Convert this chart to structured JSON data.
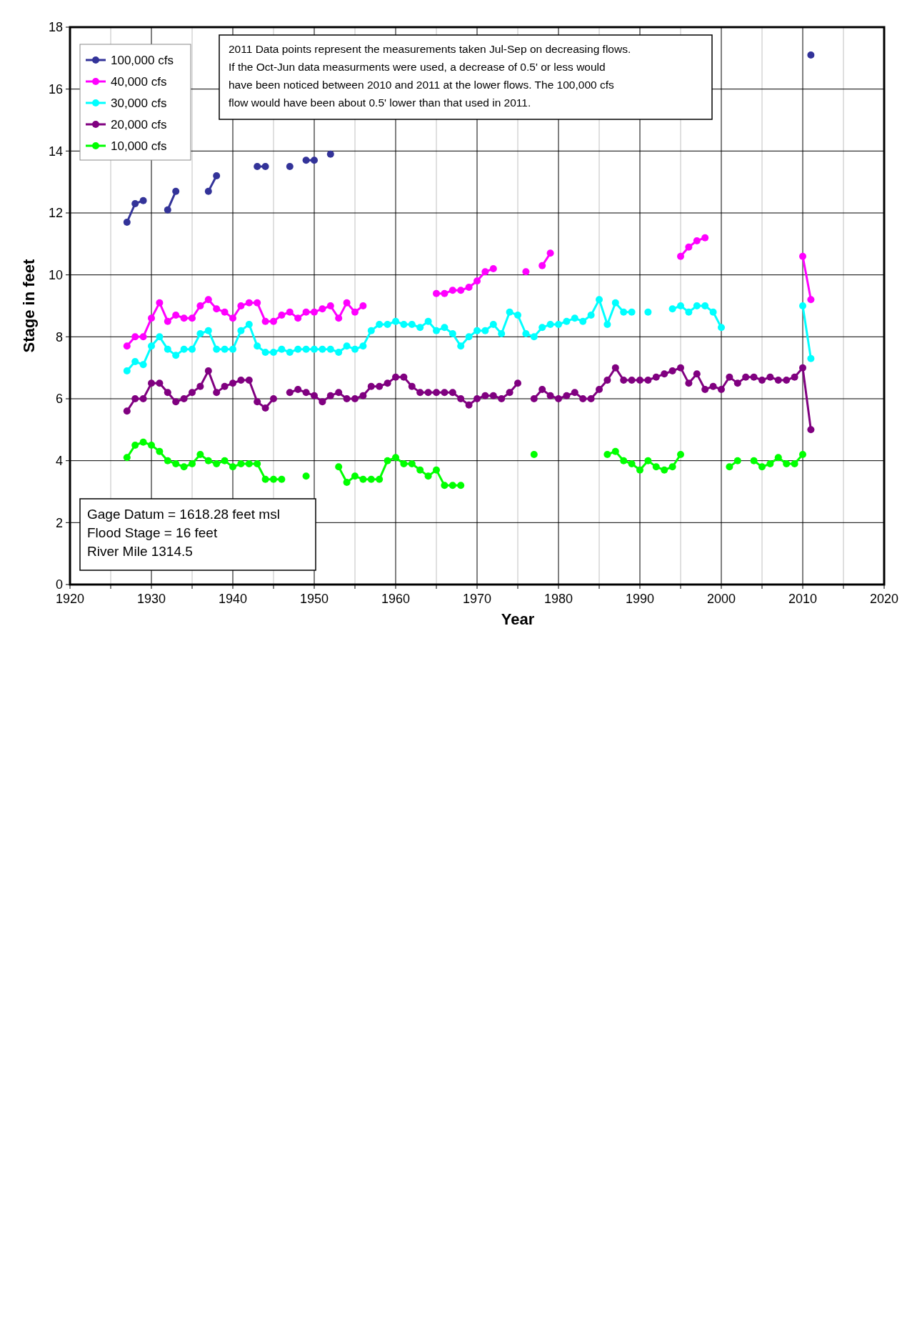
{
  "chart_data": {
    "type": "line",
    "xlabel": "Year",
    "ylabel": "Stage in feet",
    "x": [
      1927,
      1928,
      1929,
      1930,
      1931,
      1932,
      1933,
      1934,
      1935,
      1936,
      1937,
      1938,
      1939,
      1940,
      1941,
      1942,
      1943,
      1944,
      1945,
      1946,
      1947,
      1948,
      1949,
      1950,
      1951,
      1952,
      1953,
      1954,
      1955,
      1956,
      1957,
      1958,
      1959,
      1960,
      1961,
      1962,
      1963,
      1964,
      1965,
      1966,
      1967,
      1968,
      1969,
      1970,
      1971,
      1972,
      1973,
      1974,
      1975,
      1976,
      1977,
      1978,
      1979,
      1980,
      1981,
      1982,
      1983,
      1984,
      1985,
      1986,
      1987,
      1988,
      1989,
      1990,
      1991,
      1992,
      1993,
      1994,
      1995,
      1996,
      1997,
      1998,
      1999,
      2000,
      2001,
      2002,
      2003,
      2004,
      2005,
      2006,
      2007,
      2008,
      2009,
      2010,
      2011
    ],
    "series": [
      {
        "name": "100,000 cfs",
        "color": "#333399",
        "values": [
          11.7,
          12.3,
          12.4,
          null,
          null,
          12.1,
          12.7,
          null,
          null,
          null,
          12.7,
          13.2,
          null,
          null,
          null,
          null,
          13.5,
          13.5,
          null,
          null,
          13.5,
          null,
          13.7,
          13.7,
          null,
          13.9,
          null,
          null,
          null,
          null,
          null,
          null,
          null,
          null,
          null,
          null,
          null,
          null,
          null,
          null,
          null,
          null,
          null,
          null,
          null,
          null,
          null,
          null,
          null,
          null,
          null,
          null,
          null,
          null,
          null,
          null,
          null,
          null,
          null,
          null,
          null,
          null,
          null,
          null,
          null,
          null,
          null,
          null,
          null,
          null,
          null,
          null,
          null,
          null,
          null,
          null,
          null,
          null,
          null,
          null,
          null,
          null,
          null,
          null,
          17.1
        ]
      },
      {
        "name": "40,000 cfs",
        "color": "#ff00ff",
        "values": [
          7.7,
          8.0,
          8.0,
          8.6,
          9.1,
          8.5,
          8.7,
          8.6,
          8.6,
          9.0,
          9.2,
          8.9,
          8.8,
          8.6,
          9.0,
          9.1,
          9.1,
          8.5,
          8.5,
          8.7,
          8.8,
          8.6,
          8.8,
          8.8,
          8.9,
          9.0,
          8.6,
          9.1,
          8.8,
          9.0,
          null,
          null,
          null,
          null,
          null,
          null,
          null,
          null,
          9.4,
          9.4,
          9.5,
          9.5,
          9.6,
          9.8,
          10.1,
          10.2,
          null,
          null,
          null,
          10.1,
          null,
          10.3,
          10.7,
          null,
          null,
          null,
          null,
          null,
          null,
          null,
          null,
          null,
          null,
          null,
          null,
          null,
          null,
          null,
          10.6,
          10.9,
          11.1,
          11.2,
          null,
          null,
          null,
          null,
          null,
          null,
          null,
          null,
          null,
          null,
          null,
          10.6,
          9.2
        ]
      },
      {
        "name": "30,000 cfs",
        "color": "#00ffff",
        "values": [
          6.9,
          7.2,
          7.1,
          7.7,
          8.0,
          7.6,
          7.4,
          7.6,
          7.6,
          8.1,
          8.2,
          7.6,
          7.6,
          7.6,
          8.2,
          8.4,
          7.7,
          7.5,
          7.5,
          7.6,
          7.5,
          7.6,
          7.6,
          7.6,
          7.6,
          7.6,
          7.5,
          7.7,
          7.6,
          7.7,
          8.2,
          8.4,
          8.4,
          8.5,
          8.4,
          8.4,
          8.3,
          8.5,
          8.2,
          8.3,
          8.1,
          7.7,
          8.0,
          8.2,
          8.2,
          8.4,
          8.1,
          8.8,
          8.7,
          8.1,
          8.0,
          8.3,
          8.4,
          8.4,
          8.5,
          8.6,
          8.5,
          8.7,
          9.2,
          8.4,
          9.1,
          8.8,
          8.8,
          null,
          8.8,
          null,
          null,
          8.9,
          9.0,
          8.8,
          9.0,
          9.0,
          8.8,
          8.3,
          null,
          null,
          null,
          null,
          null,
          null,
          null,
          null,
          null,
          9.0,
          7.3
        ]
      },
      {
        "name": "20,000 cfs",
        "color": "#800080",
        "values": [
          5.6,
          6.0,
          6.0,
          6.5,
          6.5,
          6.2,
          5.9,
          6.0,
          6.2,
          6.4,
          6.9,
          6.2,
          6.4,
          6.5,
          6.6,
          6.6,
          5.9,
          5.7,
          6.0,
          null,
          6.2,
          6.3,
          6.2,
          6.1,
          5.9,
          6.1,
          6.2,
          6.0,
          6.0,
          6.1,
          6.4,
          6.4,
          6.5,
          6.7,
          6.7,
          6.4,
          6.2,
          6.2,
          6.2,
          6.2,
          6.2,
          6.0,
          5.8,
          6.0,
          6.1,
          6.1,
          6.0,
          6.2,
          6.5,
          null,
          6.0,
          6.3,
          6.1,
          6.0,
          6.1,
          6.2,
          6.0,
          6.0,
          6.3,
          6.6,
          7.0,
          6.6,
          6.6,
          6.6,
          6.6,
          6.7,
          6.8,
          6.9,
          7.0,
          6.5,
          6.8,
          6.3,
          6.4,
          6.3,
          6.7,
          6.5,
          6.7,
          6.7,
          6.6,
          6.7,
          6.6,
          6.6,
          6.7,
          7.0,
          5.0
        ]
      },
      {
        "name": "10,000 cfs",
        "color": "#00ff00",
        "values": [
          4.1,
          4.5,
          4.6,
          4.5,
          4.3,
          4.0,
          3.9,
          3.8,
          3.9,
          4.2,
          4.0,
          3.9,
          4.0,
          3.8,
          3.9,
          3.9,
          3.9,
          3.4,
          3.4,
          3.4,
          null,
          null,
          3.5,
          null,
          null,
          null,
          3.8,
          3.3,
          3.5,
          3.4,
          3.4,
          3.4,
          4.0,
          4.1,
          3.9,
          3.9,
          3.7,
          3.5,
          3.7,
          3.2,
          3.2,
          3.2,
          null,
          null,
          null,
          null,
          null,
          null,
          null,
          null,
          4.2,
          null,
          null,
          null,
          null,
          null,
          null,
          null,
          null,
          4.2,
          4.3,
          4.0,
          3.9,
          3.7,
          4.0,
          3.8,
          3.7,
          3.8,
          4.2,
          null,
          null,
          null,
          null,
          null,
          3.8,
          4.0,
          null,
          4.0,
          3.8,
          3.9,
          4.1,
          3.9,
          3.9,
          4.2,
          null
        ]
      }
    ],
    "xlim": [
      1920,
      2020
    ],
    "xticks": [
      1920,
      {
        "value": 1925,
        "label": null
      },
      1930,
      {
        "value": 1935,
        "label": null
      },
      1940,
      {
        "value": 1945,
        "label": null
      },
      1950,
      {
        "value": 1955,
        "label": null
      },
      1960,
      {
        "value": 1965,
        "label": null
      },
      1970,
      {
        "value": 1975,
        "label": null
      },
      1980,
      {
        "value": 1985,
        "label": null
      },
      1990,
      {
        "value": 1995,
        "label": null
      },
      2000,
      {
        "value": 2005,
        "label": null
      },
      2010,
      {
        "value": 2015,
        "label": null
      },
      2020
    ],
    "ylim": [
      0,
      18
    ],
    "yticks": [
      0,
      2,
      4,
      6,
      8,
      10,
      12,
      14,
      16,
      18
    ],
    "grid": true,
    "legend": "top left",
    "marker": "circle",
    "line_style": "solid",
    "annotations": [
      "2011 Data points represent the measurements taken Jul-Sep on decreasing flows. If the Oct-Jun data  measurments were used, a decrease of 0.5' or less would have been noticed between 2010 and 2011 at the lower flows.  The 100,000 cfs flow would have been about 0.5' lower than that used in 2011.",
      "Gage Datum = 1618.28 feet msl",
      "Flood Stage = 16 feet",
      "River Mile 1314.5"
    ]
  }
}
